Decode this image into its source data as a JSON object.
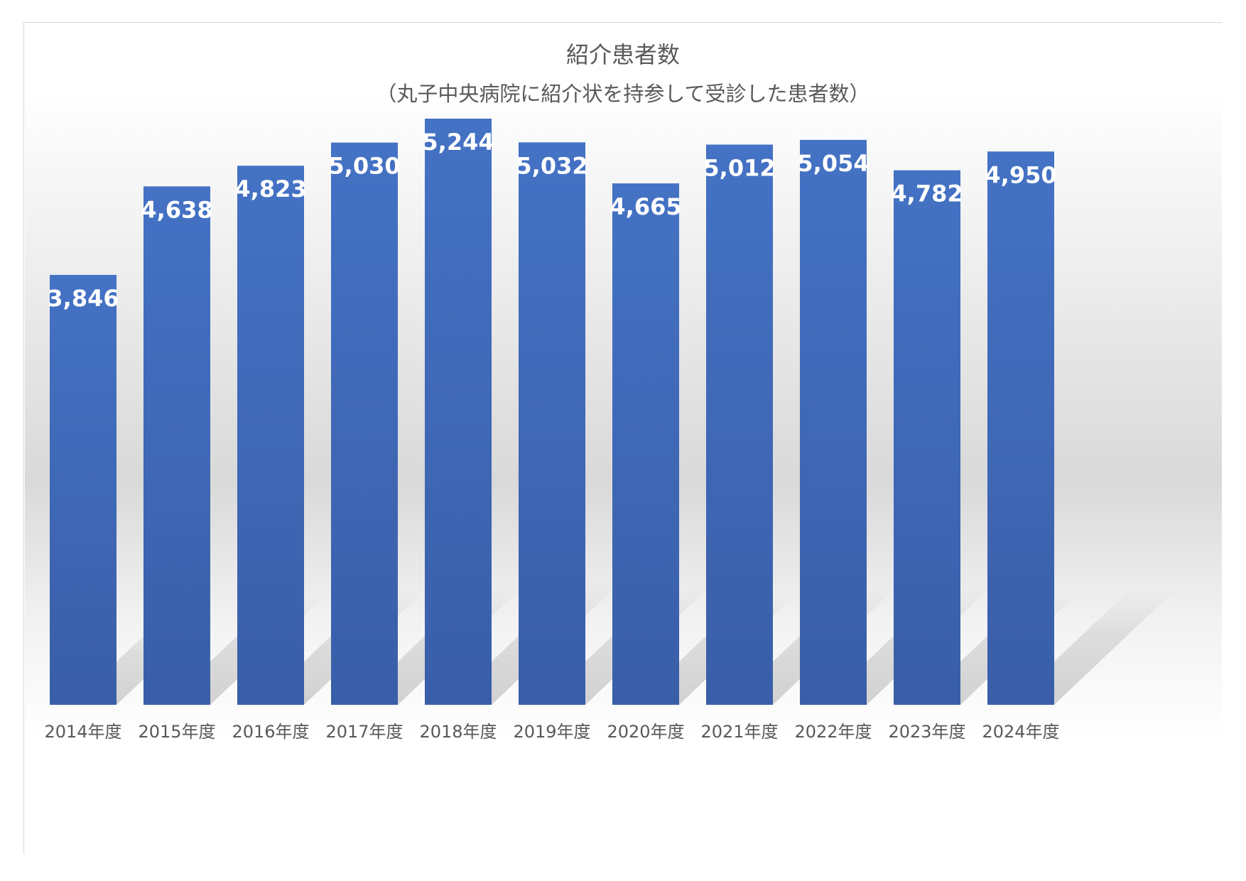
{
  "chart_data": {
    "type": "bar",
    "title": "紹介患者数",
    "subtitle": "（丸子中央病院に紹介状を持参して受診した患者数）",
    "categories": [
      "2014年度",
      "2015年度",
      "2016年度",
      "2017年度",
      "2018年度",
      "2019年度",
      "2020年度",
      "2021年度",
      "2022年度",
      "2023年度",
      "2024年度"
    ],
    "values": [
      3846,
      4638,
      4823,
      5030,
      5244,
      5032,
      4665,
      5012,
      5054,
      4782,
      4950
    ],
    "data_labels": [
      "3,846",
      "4,638",
      "4,823",
      "5,030",
      "5,244",
      "5,032",
      "4,665",
      "5,012",
      "5,054",
      "4,782",
      "4,950"
    ],
    "ylim": [
      0,
      5244
    ],
    "grid": false,
    "legend": "none",
    "colors": {
      "bar_top": "#4472c4",
      "bar_bottom": "#3a5ea8",
      "label": "#ffffff",
      "title": "#595959",
      "tick": "#595959",
      "background_band": "#d9d9d9"
    }
  }
}
